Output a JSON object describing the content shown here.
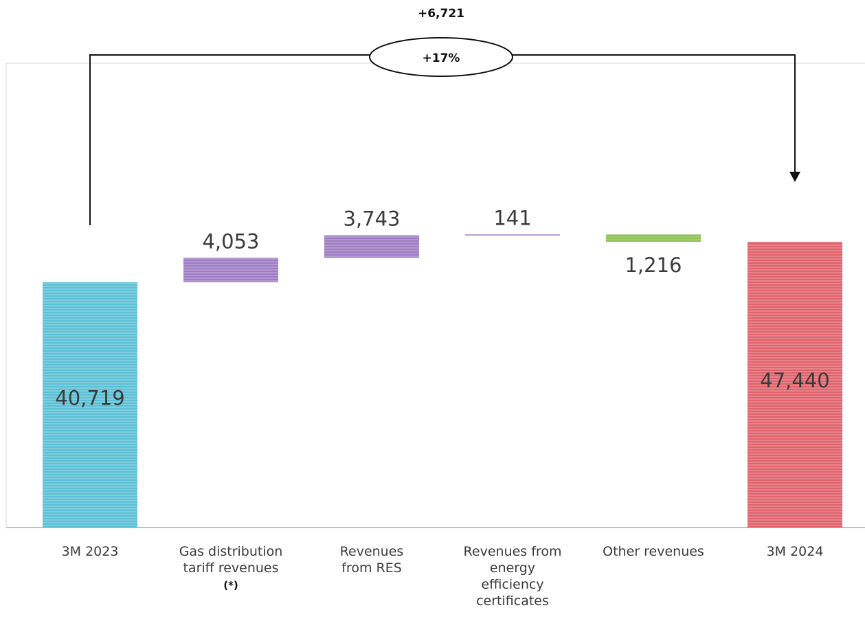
{
  "chart_data": {
    "type": "waterfall",
    "categories": [
      [
        "3M 2023"
      ],
      [
        "Gas distribution",
        "tariff revenues"
      ],
      [
        "Revenues",
        "from RES"
      ],
      [
        "Revenues from",
        "energy",
        "efficiency",
        "certificates"
      ],
      [
        "Other revenues"
      ],
      [
        "3M 2024"
      ]
    ],
    "category_notes": [
      "",
      "(*)",
      "",
      "",
      "",
      ""
    ],
    "steps": [
      {
        "kind": "total",
        "value": 40719,
        "label": "40,719",
        "color": "#5bc0d6"
      },
      {
        "kind": "delta",
        "value": 4053,
        "label": "4,053",
        "color": "#9d7cc4"
      },
      {
        "kind": "delta",
        "value": 3743,
        "label": "3,743",
        "color": "#9d7cc4"
      },
      {
        "kind": "delta",
        "value": 141,
        "label": "141",
        "color": "#9d7cc4"
      },
      {
        "kind": "delta",
        "value": -1216,
        "label": "1,216",
        "color": "#8cc04f"
      },
      {
        "kind": "total",
        "value": 47440,
        "label": "47,440",
        "color": "#e0626a"
      }
    ],
    "change": {
      "absolute": "+6,721",
      "percent": "+17%"
    }
  }
}
